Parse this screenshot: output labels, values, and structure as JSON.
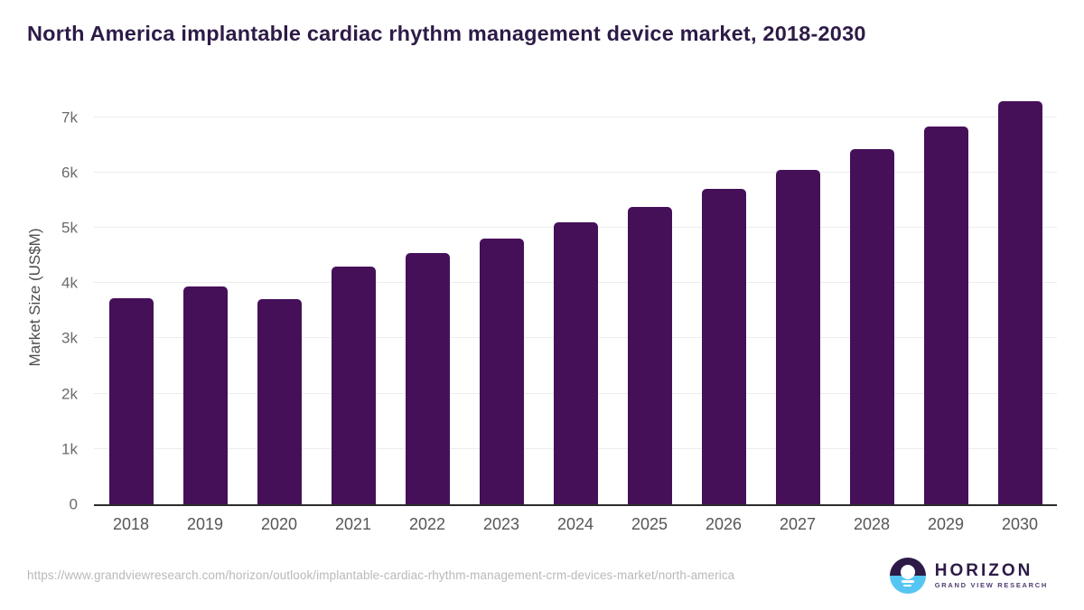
{
  "title": "North America implantable cardiac rhythm management device market, 2018-2030",
  "source_url": "https://www.grandviewresearch.com/horizon/outlook/implantable-cardiac-rhythm-management-crm-devices-market/north-america",
  "logo": {
    "name": "HORIZON",
    "subtitle": "GRAND VIEW RESEARCH",
    "icon": "sunset-horizon-icon"
  },
  "colors": {
    "bar": "#461059",
    "title": "#2d1b47",
    "gridline": "#ececec",
    "axis_line": "#2b2b2b",
    "tick_labels": "#6b6b6b",
    "url_text": "#b9b9b9",
    "logo_dark": "#2e1a47",
    "logo_blue": "#55c6f1"
  },
  "chart_data": {
    "type": "bar",
    "title": "North America implantable cardiac rhythm management device market, 2018-2030",
    "categories": [
      "2018",
      "2019",
      "2020",
      "2021",
      "2022",
      "2023",
      "2024",
      "2025",
      "2026",
      "2027",
      "2028",
      "2029",
      "2030"
    ],
    "values": [
      3720,
      3930,
      3710,
      4290,
      4540,
      4800,
      5090,
      5380,
      5700,
      6040,
      6420,
      6830,
      7280
    ],
    "xlabel": "",
    "ylabel": "Market Size (US$M)",
    "ylim": [
      0,
      7400
    ],
    "ytick_values": [
      0,
      1000,
      2000,
      3000,
      4000,
      5000,
      6000,
      7000
    ],
    "ytick_labels": [
      "0",
      "1k",
      "2k",
      "3k",
      "4k",
      "5k",
      "6k",
      "7k"
    ],
    "grid": "horizontal",
    "legend": false,
    "bar_corner_radius": "rounded-top"
  }
}
